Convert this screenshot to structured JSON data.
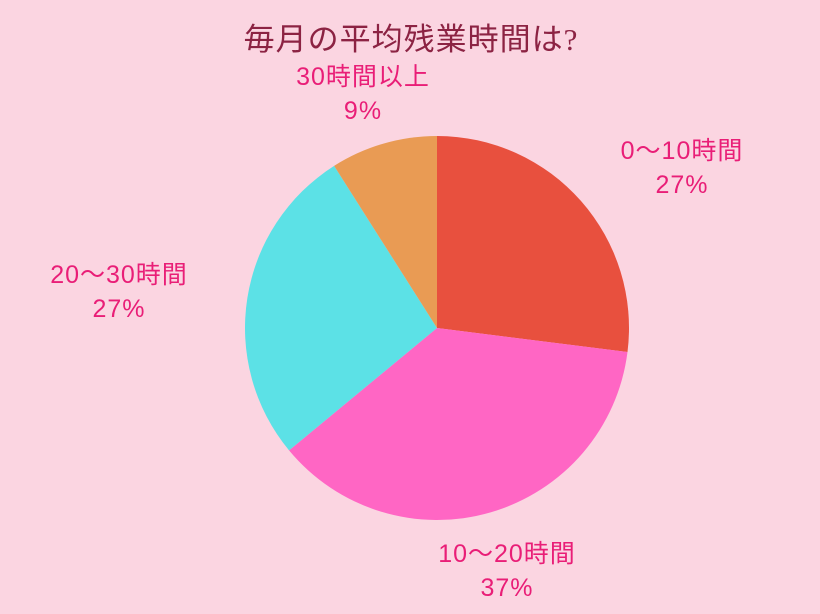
{
  "page": {
    "background_color": "#FBD5E1"
  },
  "chart_data": {
    "type": "pie",
    "title": "毎月の平均残業時間は?",
    "title_color": "#8C2343",
    "label_color": "#E91E77",
    "start_angle_deg": 0,
    "direction": "clockwise",
    "legend": "none",
    "grid": "off",
    "segments": [
      {
        "label": "0〜10時間",
        "value": 27,
        "pct_text": "27%",
        "color": "#E8503E",
        "label_position": "right"
      },
      {
        "label": "10〜20時間",
        "value": 37,
        "pct_text": "37%",
        "color": "#FF66C4",
        "label_position": "bottom"
      },
      {
        "label": "20〜30時間",
        "value": 27,
        "pct_text": "27%",
        "color": "#5CE1E6",
        "label_position": "left"
      },
      {
        "label": "30時間以上",
        "value": 9,
        "pct_text": "9%",
        "color": "#E99B54",
        "label_position": "top"
      }
    ]
  }
}
